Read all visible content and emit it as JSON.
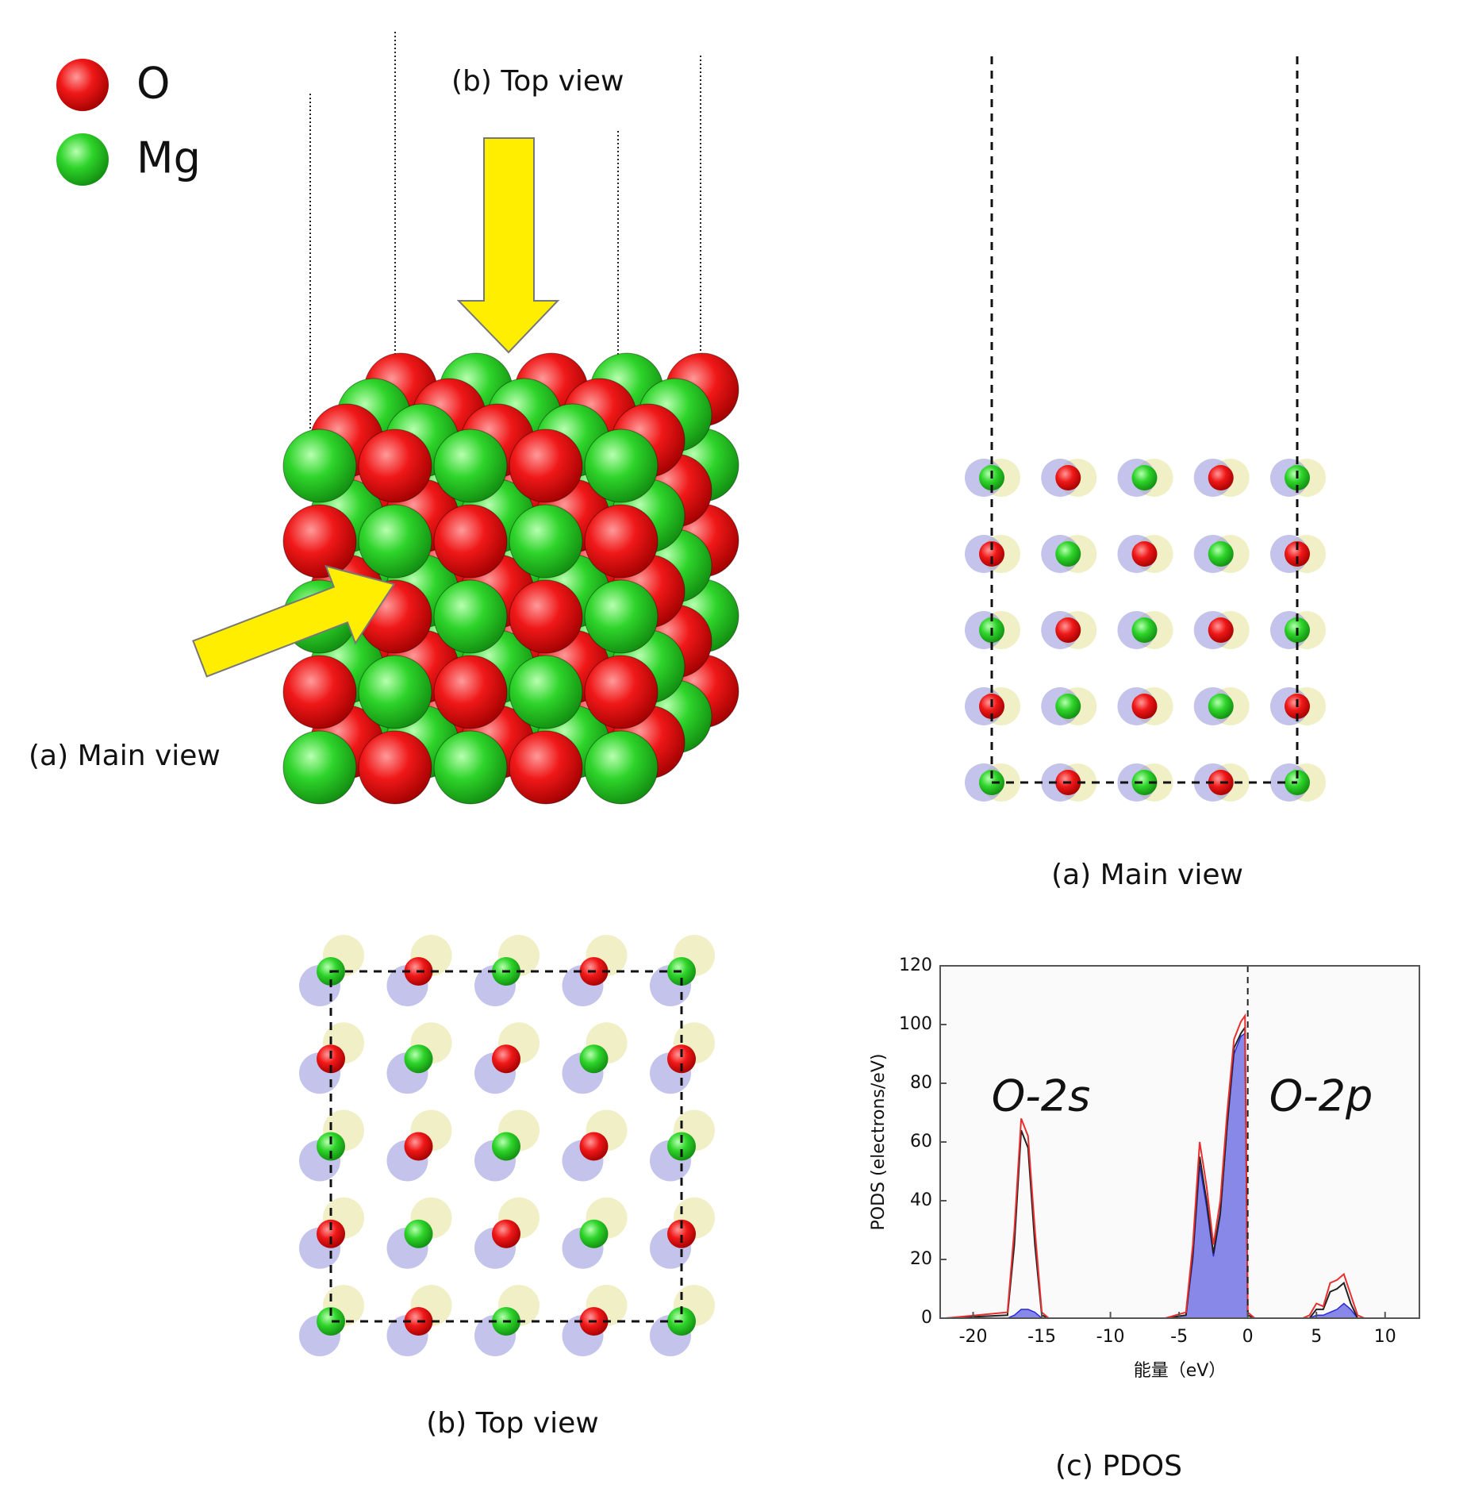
{
  "legend": {
    "items": [
      {
        "label": "O"
      },
      {
        "label": "Mg"
      }
    ]
  },
  "structure": {
    "top_arrow_label": "(b) Top view",
    "side_arrow_label": "(a) Main view"
  },
  "panels": {
    "a": "(a) Main view",
    "b": "(b) Top view",
    "c": "(c) PDOS"
  },
  "chart_data": {
    "type": "line",
    "xlabel": "能量（eV）",
    "ylabel": "PODS (electrons/eV)",
    "annotations": [
      "O-2s",
      "O-2p"
    ],
    "xlim": [
      -22.4,
      12.5
    ],
    "ylim": [
      0,
      120
    ],
    "xticks": [
      -20,
      -15,
      -10,
      -5,
      0,
      5,
      10
    ],
    "yticks": [
      0,
      20,
      40,
      60,
      80,
      100,
      120
    ],
    "vline": 0,
    "x": [
      -22,
      -17.5,
      -17,
      -16.5,
      -16,
      -15.5,
      -15,
      -14.5,
      -6,
      -4.5,
      -4,
      -3.5,
      -3,
      -2.5,
      -2,
      -1.5,
      -1,
      -0.5,
      -0.2,
      0,
      0.5,
      4,
      4.5,
      5,
      5.5,
      6,
      6.5,
      7,
      7.5,
      8,
      8.5,
      12
    ],
    "series": [
      {
        "color": "#2a2ad8",
        "fill": true,
        "values": [
          0,
          0,
          1,
          3,
          3,
          2,
          0,
          0,
          0,
          1,
          20,
          52,
          38,
          21,
          35,
          65,
          90,
          96,
          97,
          0,
          0,
          0,
          0,
          1,
          1,
          2,
          3,
          5,
          3,
          0,
          0,
          0
        ]
      },
      {
        "color": "#222222",
        "values": [
          0,
          1,
          25,
          64,
          58,
          25,
          1,
          0,
          0,
          1,
          22,
          55,
          40,
          22,
          36,
          66,
          92,
          97,
          99,
          1,
          0,
          0,
          0,
          3,
          3,
          9,
          10,
          12,
          5,
          0,
          0,
          0
        ]
      },
      {
        "color": "#e83030",
        "values": [
          0,
          2,
          30,
          68,
          62,
          30,
          2,
          0,
          0,
          2,
          25,
          60,
          45,
          25,
          40,
          70,
          95,
          101,
          103,
          2,
          0,
          0,
          1,
          5,
          4,
          12,
          13,
          15,
          8,
          1,
          0,
          0
        ]
      }
    ]
  }
}
